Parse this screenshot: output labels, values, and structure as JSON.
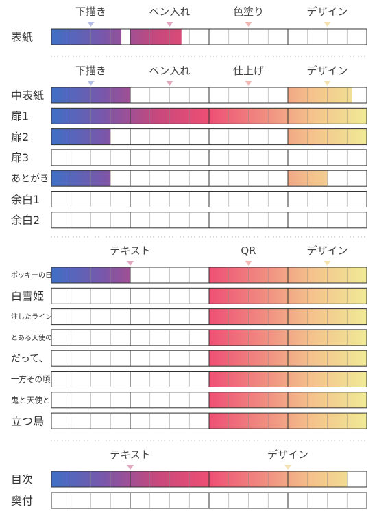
{
  "colors": {
    "gradient": [
      "#3f6fc6",
      "#7a57aa",
      "#c7487c",
      "#ee4f74",
      "#f08a80",
      "#f4c48c",
      "#f0ea95"
    ],
    "marker": [
      "#b7c0e8",
      "#e3a8c0",
      "#f0b8b2",
      "#f6e2b0"
    ],
    "grid": "#333333",
    "separator": "#bbbbbb"
  },
  "chart_data": {
    "type": "table",
    "title": "",
    "segments": 16,
    "sections": [
      {
        "headers": [
          {
            "label": "下描き",
            "marker_at": 2
          },
          {
            "label": "ペン入れ",
            "marker_at": 6
          },
          {
            "label": "色塗り",
            "marker_at": 10
          },
          {
            "label": "デザイン",
            "marker_at": 14
          }
        ],
        "rows": [
          {
            "name": "表紙",
            "fills": [
              [
                0,
                3.55
              ],
              [
                4,
                6.6
              ]
            ]
          }
        ]
      },
      {
        "headers": [
          {
            "label": "下描き",
            "marker_at": 2
          },
          {
            "label": "ペン入れ",
            "marker_at": 6
          },
          {
            "label": "仕上げ",
            "marker_at": 10
          },
          {
            "label": "デザイン",
            "marker_at": 14
          }
        ],
        "rows": [
          {
            "name": "中表紙",
            "fills": [
              [
                0,
                4
              ],
              [
                12,
                15.25
              ]
            ]
          },
          {
            "name": "扉1",
            "fills": [
              [
                0,
                16
              ]
            ]
          },
          {
            "name": "扉2",
            "fills": [
              [
                0,
                3
              ],
              [
                12,
                16
              ]
            ]
          },
          {
            "name": "扉3",
            "fills": []
          },
          {
            "name": "あとがき",
            "fills": [
              [
                0,
                3
              ],
              [
                12,
                14
              ]
            ]
          },
          {
            "name": "余白1",
            "fills": []
          },
          {
            "name": "余白2",
            "fills": []
          }
        ]
      },
      {
        "headers": [
          {
            "label": "テキスト",
            "marker_at": 4
          },
          {
            "label": "QR",
            "marker_at": 10
          },
          {
            "label": "デザイン",
            "marker_at": 14
          }
        ],
        "rows": [
          {
            "name": "ポッキーの日",
            "fills": [
              [
                0,
                4
              ],
              [
                8,
                16
              ]
            ]
          },
          {
            "name": "白雪姫",
            "fills": [
              [
                8,
                16
              ]
            ]
          },
          {
            "name": "注したライン",
            "fills": [
              [
                8,
                16
              ]
            ]
          },
          {
            "name": "とある天使の",
            "fills": [
              [
                8,
                16
              ]
            ]
          },
          {
            "name": "だって、",
            "fills": [
              [
                8,
                16
              ]
            ]
          },
          {
            "name": "一方その頃",
            "fills": [
              [
                8,
                16
              ]
            ]
          },
          {
            "name": "鬼と天使と",
            "fills": [
              [
                8,
                16
              ]
            ]
          },
          {
            "name": "立つ鳥",
            "fills": [
              [
                8,
                16
              ]
            ]
          }
        ]
      },
      {
        "headers": [
          {
            "label": "テキスト",
            "marker_at": 4
          },
          {
            "label": "デザイン",
            "marker_at": 12
          }
        ],
        "rows": [
          {
            "name": "目次",
            "fills": [
              [
                0,
                15
              ]
            ]
          },
          {
            "name": "奥付",
            "fills": []
          }
        ]
      }
    ]
  }
}
